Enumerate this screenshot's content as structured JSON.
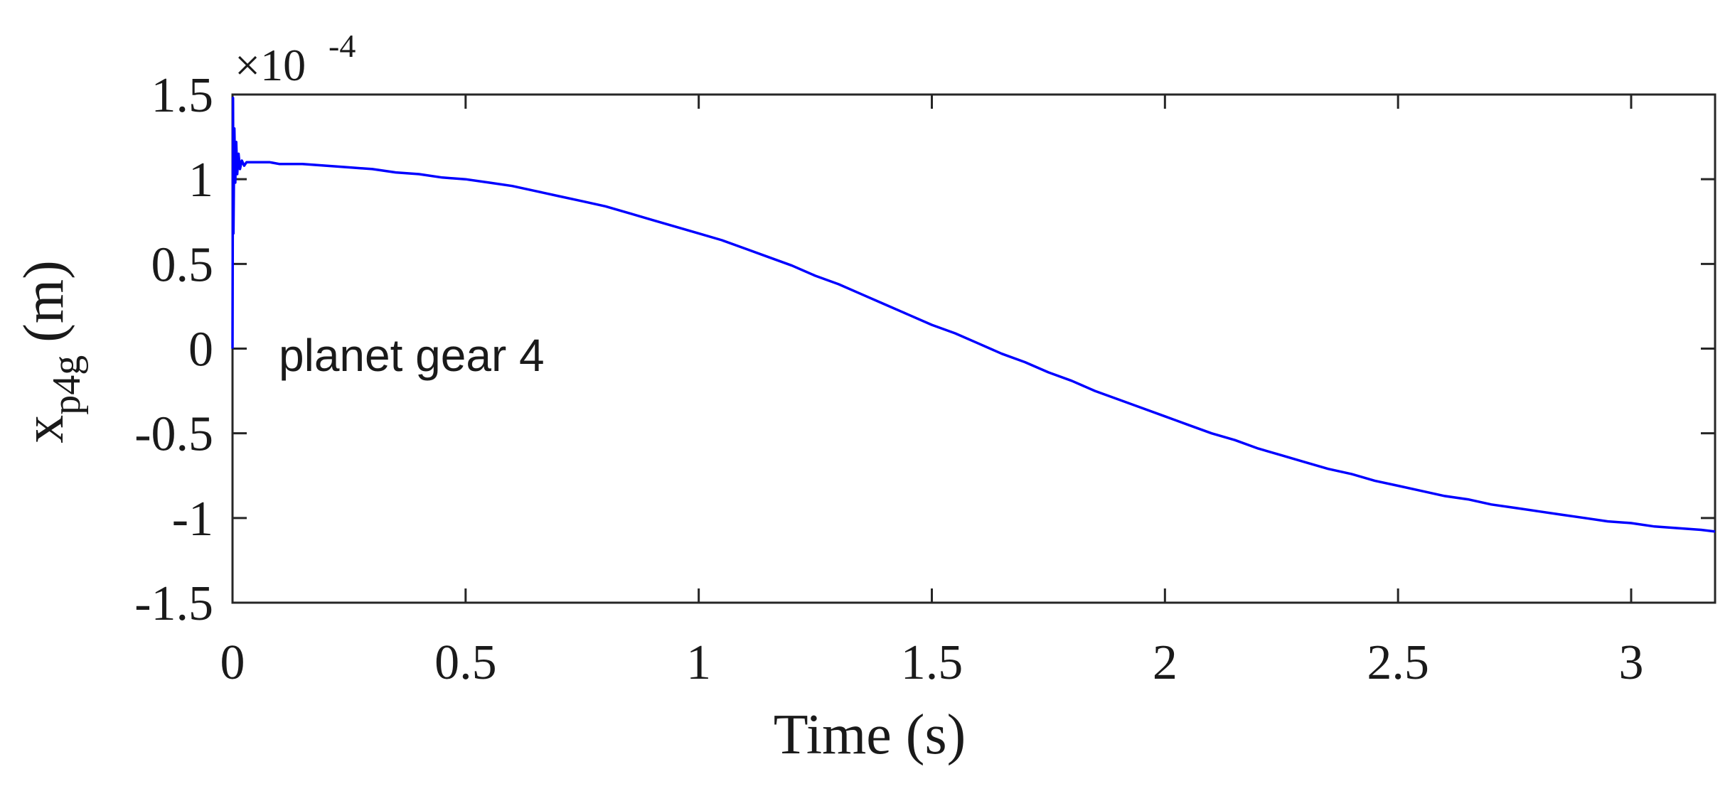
{
  "chart_data": {
    "type": "line",
    "xlabel": "Time (s)",
    "ylabel_main": "x",
    "ylabel_sub": "p4g",
    "ylabel_unit": "(m)",
    "y_exponent_prefix": "×10",
    "y_exponent": "-4",
    "annotation": "planet gear 4",
    "xlim": [
      0,
      3.18
    ],
    "ylim": [
      -1.5,
      1.5
    ],
    "y_scale_factor": 0.0001,
    "xticks": [
      0,
      0.5,
      1,
      1.5,
      2,
      2.5,
      3
    ],
    "xtick_labels": [
      "0",
      "0.5",
      "1",
      "1.5",
      "2",
      "2.5",
      "3"
    ],
    "yticks": [
      -1.5,
      -1,
      -0.5,
      0,
      0.5,
      1,
      1.5
    ],
    "ytick_labels": [
      "-1.5",
      "-1",
      "-0.5",
      "0",
      "0.5",
      "1",
      "1.5"
    ],
    "grid": false,
    "line_color": "#0000ff",
    "series": [
      {
        "x": [
          0,
          0.001,
          0.002,
          0.004,
          0.006,
          0.008,
          0.01,
          0.013,
          0.016,
          0.02,
          0.025,
          0.03,
          0.04,
          0.05,
          0.08,
          0.1,
          0.15,
          0.2,
          0.25,
          0.3,
          0.35,
          0.4,
          0.45,
          0.5,
          0.55,
          0.6,
          0.65,
          0.7,
          0.75,
          0.8,
          0.85,
          0.9,
          0.95,
          1.0,
          1.05,
          1.1,
          1.15,
          1.2,
          1.25,
          1.3,
          1.35,
          1.4,
          1.45,
          1.5,
          1.55,
          1.6,
          1.65,
          1.7,
          1.75,
          1.8,
          1.85,
          1.9,
          1.95,
          2.0,
          2.05,
          2.1,
          2.15,
          2.2,
          2.25,
          2.3,
          2.35,
          2.4,
          2.45,
          2.5,
          2.55,
          2.6,
          2.65,
          2.7,
          2.75,
          2.8,
          2.85,
          2.9,
          2.95,
          3.0,
          3.05,
          3.1,
          3.15,
          3.18
        ],
        "y": [
          0,
          1.48,
          0.68,
          1.3,
          0.98,
          1.22,
          1.03,
          1.15,
          1.06,
          1.11,
          1.08,
          1.1,
          1.1,
          1.1,
          1.1,
          1.09,
          1.09,
          1.08,
          1.07,
          1.06,
          1.04,
          1.03,
          1.01,
          1.0,
          0.98,
          0.96,
          0.93,
          0.9,
          0.87,
          0.84,
          0.8,
          0.76,
          0.72,
          0.68,
          0.64,
          0.59,
          0.54,
          0.49,
          0.43,
          0.38,
          0.32,
          0.26,
          0.2,
          0.14,
          0.09,
          0.03,
          -0.03,
          -0.08,
          -0.14,
          -0.19,
          -0.25,
          -0.3,
          -0.35,
          -0.4,
          -0.45,
          -0.5,
          -0.54,
          -0.59,
          -0.63,
          -0.67,
          -0.71,
          -0.74,
          -0.78,
          -0.81,
          -0.84,
          -0.87,
          -0.89,
          -0.92,
          -0.94,
          -0.96,
          -0.98,
          -1.0,
          -1.02,
          -1.03,
          -1.05,
          -1.06,
          -1.07,
          -1.08
        ]
      }
    ]
  }
}
